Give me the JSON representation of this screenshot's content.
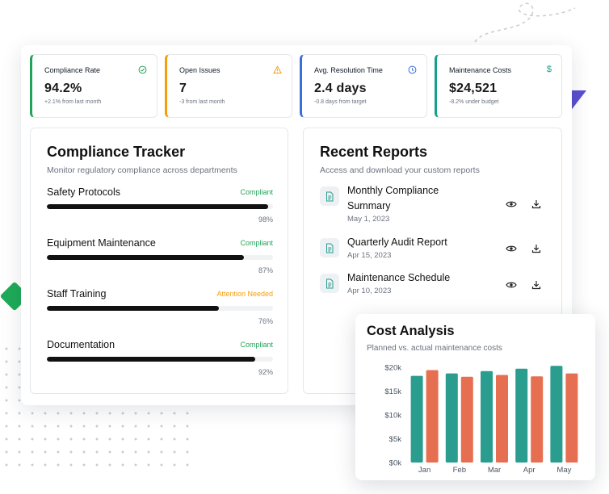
{
  "stats": [
    {
      "title": "Compliance Rate",
      "value": "94.2%",
      "sub": "+2.1% from last month",
      "icon": "check-circle-icon",
      "color": "#22a35a"
    },
    {
      "title": "Open Issues",
      "value": "7",
      "sub": "-3 from last month",
      "icon": "warning-triangle-icon",
      "color": "#f59e0b"
    },
    {
      "title": "Avg. Resolution Time",
      "value": "2.4 days",
      "sub": "-0.8 days from target",
      "icon": "clock-icon",
      "color": "#3b6fd8"
    },
    {
      "title": "Maintenance Costs",
      "value": "$24,521",
      "sub": "-8.2% under budget",
      "icon": "dollar-icon",
      "color": "#14a08a"
    }
  ],
  "compliance": {
    "title": "Compliance Tracker",
    "subtitle": "Monitor regulatory compliance across departments",
    "items": [
      {
        "name": "Safety Protocols",
        "status": "Compliant",
        "status_color": "#22a35a",
        "percent": "98%",
        "level": 98
      },
      {
        "name": "Equipment Maintenance",
        "status": "Compliant",
        "status_color": "#22a35a",
        "percent": "87%",
        "level": 87
      },
      {
        "name": "Staff Training",
        "status": "Attention Needed",
        "status_color": "#f59e0b",
        "percent": "76%",
        "level": 76
      },
      {
        "name": "Documentation",
        "status": "Compliant",
        "status_color": "#22a35a",
        "percent": "92%",
        "level": 92
      }
    ]
  },
  "reports": {
    "title": "Recent Reports",
    "subtitle": "Access and download your custom reports",
    "items": [
      {
        "title": "Monthly Compliance Summary",
        "date": "May 1, 2023"
      },
      {
        "title": "Quarterly Audit Report",
        "date": "Apr 15, 2023"
      },
      {
        "title": "Maintenance Schedule",
        "date": "Apr 10, 2023"
      }
    ]
  },
  "cost": {
    "title": "Cost Analysis",
    "subtitle": "Planned vs. actual maintenance costs"
  },
  "chart_data": {
    "type": "bar",
    "categories": [
      "Jan",
      "Feb",
      "Mar",
      "Apr",
      "May"
    ],
    "series": [
      {
        "values": [
          18200,
          18700,
          19200,
          19700,
          20300
        ],
        "color": "#2a9d8f"
      },
      {
        "values": [
          19400,
          18000,
          18400,
          18100,
          18700
        ],
        "color": "#e76f51"
      }
    ],
    "yticks": [
      "$0k",
      "$5k",
      "$10k",
      "$15k",
      "$20k"
    ],
    "ylim": [
      0,
      20000
    ],
    "grid": false,
    "legend": "none"
  }
}
